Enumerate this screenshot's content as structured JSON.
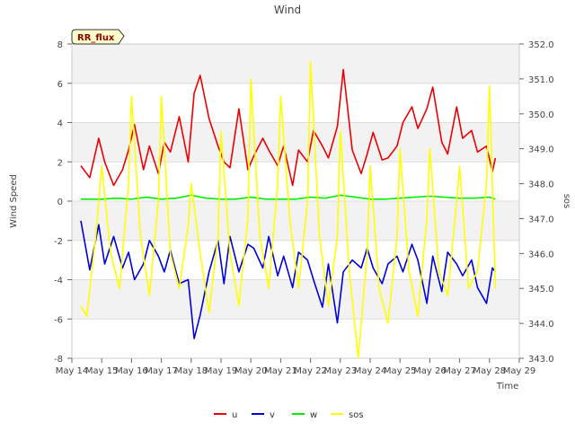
{
  "chart_data": {
    "type": "line",
    "title": "Wind",
    "xlabel": "Time",
    "ylabel": "Wind Speed",
    "y2label": "sos",
    "site_badge": "RR_flux",
    "x_start_day": 14,
    "x_end_day": 29,
    "xlim": [
      14,
      29
    ],
    "ylim": [
      -8,
      8
    ],
    "y2lim": [
      343.0,
      352.0
    ],
    "xticks": [
      {
        "day": 14,
        "label": "May 14"
      },
      {
        "day": 15,
        "label": "May 15"
      },
      {
        "day": 16,
        "label": "May 16"
      },
      {
        "day": 17,
        "label": "May 17"
      },
      {
        "day": 18,
        "label": "May 18"
      },
      {
        "day": 19,
        "label": "May 19"
      },
      {
        "day": 20,
        "label": "May 20"
      },
      {
        "day": 21,
        "label": "May 21"
      },
      {
        "day": 22,
        "label": "May 22"
      },
      {
        "day": 23,
        "label": "May 23"
      },
      {
        "day": 24,
        "label": "May 24"
      },
      {
        "day": 25,
        "label": "May 25"
      },
      {
        "day": 26,
        "label": "May 26"
      },
      {
        "day": 27,
        "label": "May 27"
      },
      {
        "day": 28,
        "label": "May 28"
      },
      {
        "day": 29,
        "label": "May 29"
      }
    ],
    "yticks": [
      {
        "v": -8,
        "label": "-8"
      },
      {
        "v": -6,
        "label": "-6"
      },
      {
        "v": -4,
        "label": "-4"
      },
      {
        "v": -2,
        "label": "-2"
      },
      {
        "v": 0,
        "label": "0"
      },
      {
        "v": 2,
        "label": "2"
      },
      {
        "v": 4,
        "label": "4"
      },
      {
        "v": 6,
        "label": "6"
      },
      {
        "v": 8,
        "label": "8"
      }
    ],
    "y2ticks": [
      {
        "v": 343.0,
        "label": "343.0"
      },
      {
        "v": 344.0,
        "label": "344.0"
      },
      {
        "v": 345.0,
        "label": "345.0"
      },
      {
        "v": 346.0,
        "label": "346.0"
      },
      {
        "v": 347.0,
        "label": "347.0"
      },
      {
        "v": 348.0,
        "label": "348.0"
      },
      {
        "v": 349.0,
        "label": "349.0"
      },
      {
        "v": 350.0,
        "label": "350.0"
      },
      {
        "v": 351.0,
        "label": "351.0"
      },
      {
        "v": 352.0,
        "label": "352.0"
      }
    ],
    "grid": true,
    "legend_position": "bottom-center",
    "series": [
      {
        "name": "u",
        "color": "#ee0000",
        "axis": "left",
        "x": [
          14.3,
          14.6,
          14.9,
          15.1,
          15.4,
          15.7,
          15.9,
          16.1,
          16.4,
          16.6,
          16.9,
          17.1,
          17.3,
          17.6,
          17.9,
          18.1,
          18.3,
          18.6,
          18.9,
          19.1,
          19.3,
          19.6,
          19.9,
          20.1,
          20.4,
          20.6,
          20.9,
          21.1,
          21.4,
          21.6,
          21.9,
          22.1,
          22.4,
          22.6,
          22.9,
          23.1,
          23.4,
          23.7,
          23.9,
          24.1,
          24.4,
          24.6,
          24.9,
          25.1,
          25.4,
          25.6,
          25.9,
          26.1,
          26.4,
          26.6,
          26.9,
          27.1,
          27.4,
          27.6,
          27.9,
          28.1,
          28.2
        ],
        "y": [
          1.8,
          1.2,
          3.2,
          2.0,
          0.8,
          1.6,
          2.6,
          3.9,
          1.6,
          2.8,
          1.4,
          3.0,
          2.5,
          4.3,
          2.0,
          5.5,
          6.4,
          4.2,
          2.8,
          2.0,
          1.7,
          4.7,
          1.6,
          2.3,
          3.2,
          2.6,
          1.8,
          2.8,
          0.8,
          2.6,
          2.0,
          3.6,
          2.8,
          2.2,
          3.8,
          6.7,
          2.6,
          1.4,
          2.4,
          3.5,
          2.1,
          2.2,
          2.8,
          4.0,
          4.8,
          3.7,
          4.7,
          5.8,
          3.0,
          2.4,
          4.8,
          3.2,
          3.6,
          2.5,
          2.8,
          1.5,
          2.2
        ]
      },
      {
        "name": "v",
        "color": "#0000dd",
        "axis": "left",
        "x": [
          14.3,
          14.6,
          14.9,
          15.1,
          15.4,
          15.7,
          15.9,
          16.1,
          16.4,
          16.6,
          16.9,
          17.1,
          17.3,
          17.6,
          17.9,
          18.1,
          18.3,
          18.6,
          18.9,
          19.1,
          19.3,
          19.6,
          19.9,
          20.1,
          20.4,
          20.6,
          20.9,
          21.1,
          21.4,
          21.6,
          21.9,
          22.1,
          22.4,
          22.6,
          22.9,
          23.1,
          23.4,
          23.7,
          23.9,
          24.1,
          24.4,
          24.6,
          24.9,
          25.1,
          25.4,
          25.6,
          25.9,
          26.1,
          26.4,
          26.6,
          26.9,
          27.1,
          27.4,
          27.6,
          27.9,
          28.1,
          28.2
        ],
        "y": [
          -1.0,
          -3.5,
          -1.2,
          -3.2,
          -1.8,
          -3.4,
          -2.6,
          -4.0,
          -3.2,
          -2.0,
          -2.8,
          -3.6,
          -2.5,
          -4.2,
          -4.0,
          -7.0,
          -5.8,
          -3.6,
          -2.0,
          -4.2,
          -1.8,
          -3.6,
          -2.2,
          -2.4,
          -3.4,
          -1.8,
          -3.8,
          -2.8,
          -4.4,
          -2.6,
          -3.0,
          -4.0,
          -5.4,
          -3.2,
          -6.2,
          -3.6,
          -3.0,
          -3.4,
          -2.4,
          -3.4,
          -4.2,
          -3.2,
          -2.8,
          -3.6,
          -2.2,
          -3.0,
          -5.2,
          -2.8,
          -4.6,
          -2.6,
          -3.2,
          -3.8,
          -3.0,
          -4.4,
          -5.2,
          -3.4,
          -3.6
        ]
      },
      {
        "name": "w",
        "color": "#00ee00",
        "axis": "left",
        "x": [
          14.3,
          15.0,
          15.5,
          16.0,
          16.5,
          17.0,
          17.5,
          18.0,
          18.5,
          19.0,
          19.5,
          20.0,
          20.5,
          21.0,
          21.5,
          22.0,
          22.5,
          23.0,
          23.5,
          24.0,
          24.5,
          25.0,
          25.5,
          26.0,
          26.5,
          27.0,
          27.5,
          28.0,
          28.2
        ],
        "y": [
          0.1,
          0.1,
          0.15,
          0.1,
          0.2,
          0.1,
          0.15,
          0.3,
          0.15,
          0.1,
          0.1,
          0.2,
          0.1,
          0.1,
          0.1,
          0.2,
          0.15,
          0.3,
          0.2,
          0.1,
          0.1,
          0.15,
          0.2,
          0.25,
          0.2,
          0.15,
          0.15,
          0.2,
          0.1
        ]
      },
      {
        "name": "sos",
        "color": "#ffff00",
        "axis": "right",
        "x": [
          14.3,
          14.5,
          14.8,
          15.0,
          15.3,
          15.6,
          15.9,
          16.0,
          16.3,
          16.6,
          16.9,
          17.0,
          17.3,
          17.6,
          17.9,
          18.0,
          18.3,
          18.6,
          18.9,
          19.0,
          19.3,
          19.6,
          19.9,
          20.0,
          20.3,
          20.6,
          20.9,
          21.0,
          21.3,
          21.6,
          21.9,
          22.0,
          22.3,
          22.6,
          22.9,
          23.0,
          23.3,
          23.6,
          23.9,
          24.0,
          24.3,
          24.6,
          24.9,
          25.0,
          25.3,
          25.6,
          25.9,
          26.0,
          26.3,
          26.6,
          26.9,
          27.0,
          27.3,
          27.6,
          27.9,
          28.0,
          28.2
        ],
        "y": [
          344.5,
          344.2,
          346.5,
          348.5,
          346.0,
          345.0,
          348.0,
          350.5,
          346.5,
          344.8,
          347.5,
          350.5,
          346.0,
          345.0,
          346.8,
          348.0,
          346.0,
          344.3,
          346.5,
          349.5,
          346.0,
          344.5,
          347.0,
          351.0,
          346.5,
          345.0,
          348.0,
          350.5,
          347.0,
          345.0,
          347.5,
          351.5,
          346.5,
          344.5,
          346.5,
          349.5,
          345.5,
          343.0,
          346.0,
          348.5,
          345.0,
          344.0,
          346.5,
          349.0,
          345.5,
          344.2,
          347.0,
          349.0,
          345.5,
          344.8,
          347.5,
          348.5,
          345.0,
          345.5,
          348.0,
          350.8,
          345.0
        ]
      }
    ]
  }
}
